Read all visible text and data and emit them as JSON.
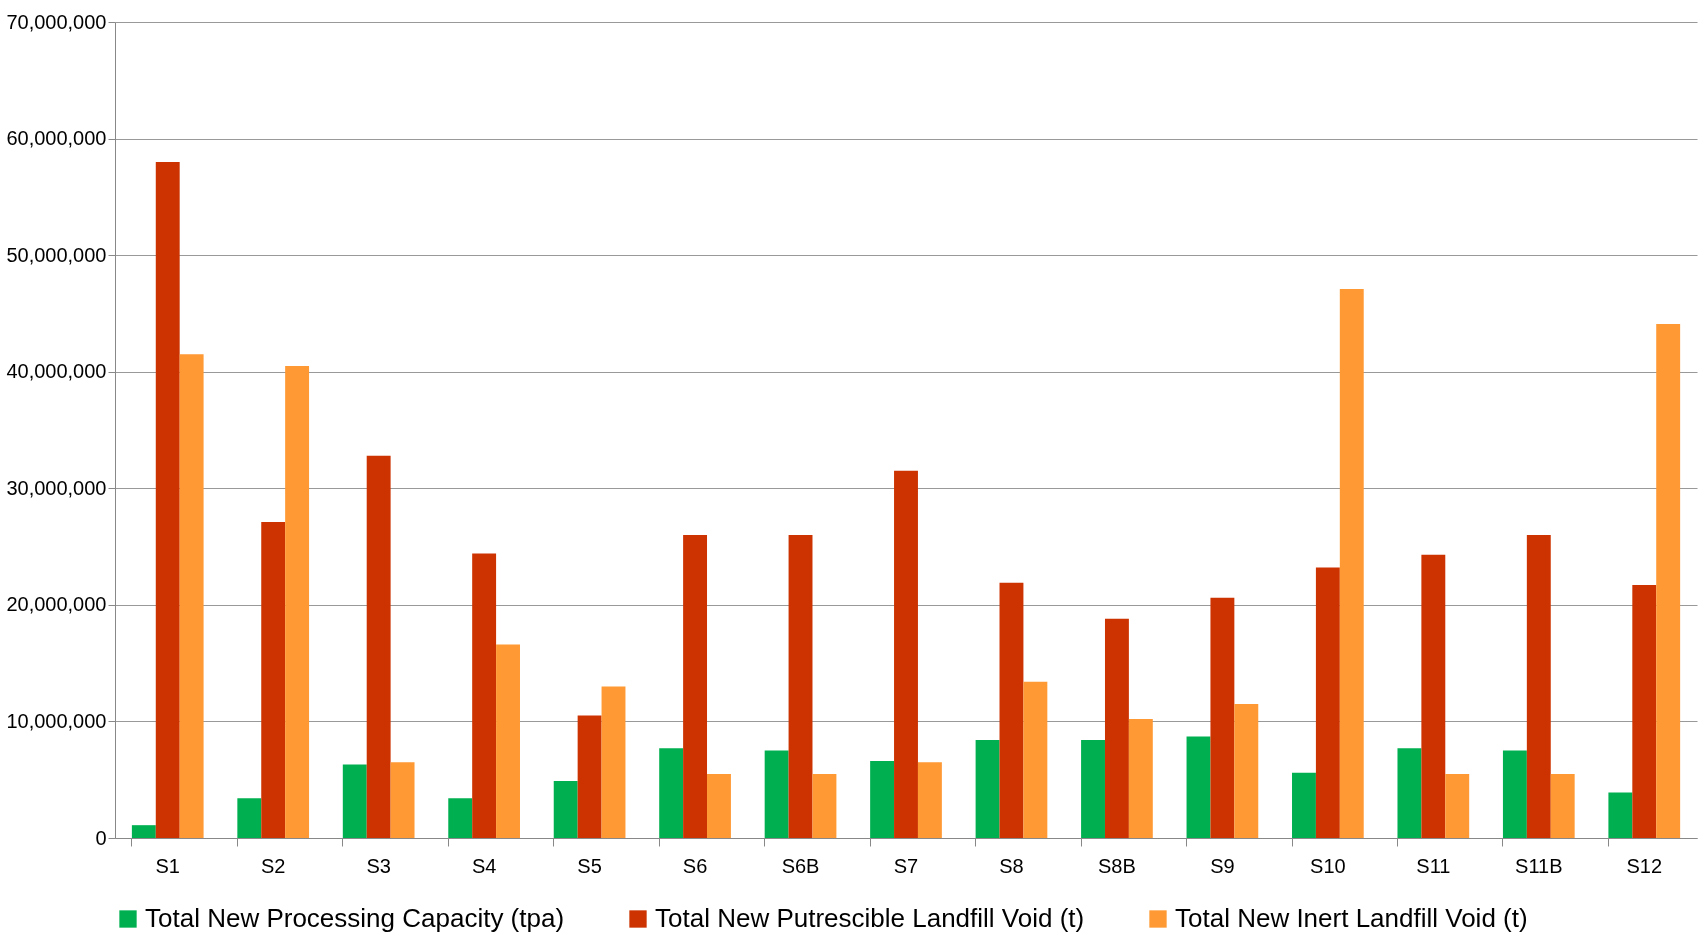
{
  "chart_data": {
    "type": "bar",
    "categories": [
      "S1",
      "S2",
      "S3",
      "S4",
      "S5",
      "S6",
      "S6B",
      "S7",
      "S8",
      "S8B",
      "S9",
      "S10",
      "S11",
      "S11B",
      "S12"
    ],
    "series": [
      {
        "name": "Total New Processing Capacity (tpa)",
        "color": "#00b050",
        "values": [
          1100000,
          3400000,
          6300000,
          3400000,
          4900000,
          7700000,
          7500000,
          6600000,
          8400000,
          8400000,
          8700000,
          5600000,
          7700000,
          7500000,
          3900000
        ]
      },
      {
        "name": "Total New Putrescible Landfill Void (t)",
        "color": "#cc3300",
        "values": [
          58000000,
          27100000,
          32800000,
          24400000,
          10500000,
          26000000,
          26000000,
          31500000,
          21900000,
          18800000,
          20600000,
          23200000,
          24300000,
          26000000,
          21700000
        ]
      },
      {
        "name": "Total New Inert Landfill Void (t)",
        "color": "#ff9933",
        "values": [
          41500000,
          40500000,
          6500000,
          16600000,
          13000000,
          5500000,
          5500000,
          6500000,
          13400000,
          10200000,
          11500000,
          47100000,
          5500000,
          5500000,
          44100000
        ]
      }
    ],
    "ylim": [
      0,
      70000000
    ],
    "yticks": [
      0,
      {
        "value": 10000000,
        "label": "10,000,000"
      },
      {
        "value": 20000000,
        "label": "20,000,000"
      },
      {
        "value": 30000000,
        "label": "30,000,000"
      },
      {
        "value": 40000000,
        "label": "40,000,000"
      },
      {
        "value": 50000000,
        "label": "50,000,000"
      },
      {
        "value": 60000000,
        "label": "60,000,000"
      },
      {
        "value": 70000000,
        "label": "70,000,000"
      }
    ],
    "grid": "y",
    "legend": "bottom"
  }
}
